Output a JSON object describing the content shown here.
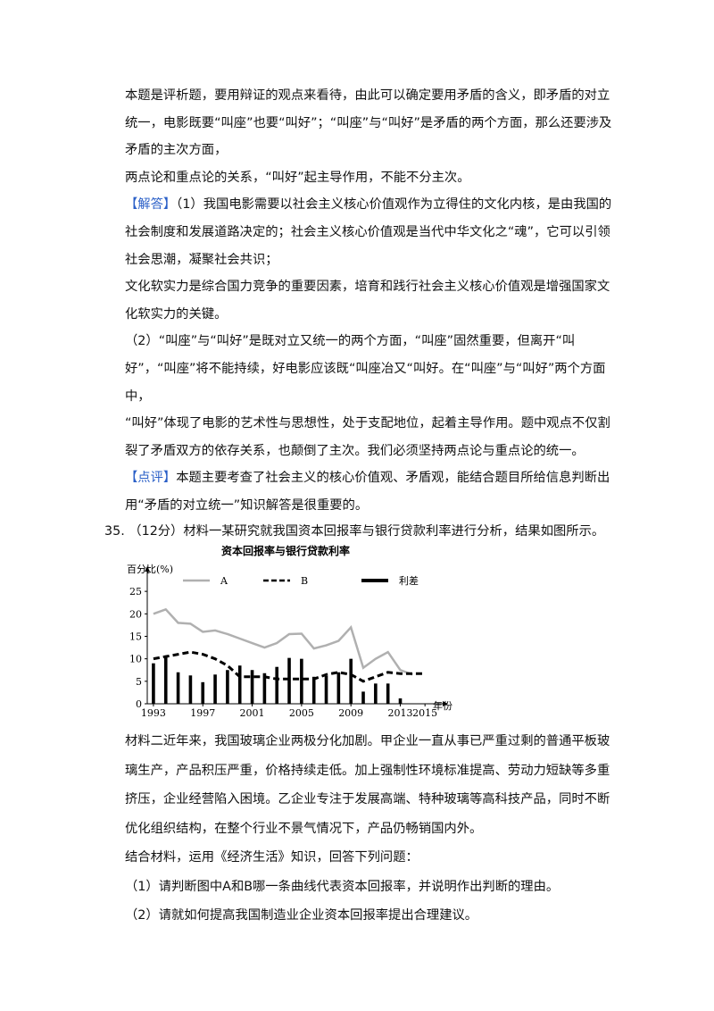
{
  "paragraphs": [
    {
      "text": "本题是评析题，要用辩证的观点来看待，由此可以确定要用矛盾的含义，即矛盾的对立统一，电影既要“叫座”也要“叫好”；“叫座”与“叫好”是矛盾的两个方面，那么还要涉及矛盾的主次方面，"
    },
    {
      "text": "两点论和重点论的关系，“叫好”起主导作用，不能不分主次。"
    },
    {
      "label": "【解答】",
      "text": "（1）我国电影需要以社会主义核心价值观作为立得住的文化内核，是由我国的社会制度和发展道路决定的；社会主义核心价值观是当代中华文化之“魂”，它可以引领社会思潮，凝聚社会共识；"
    },
    {
      "text": "文化软实力是综合国力竞争的重要因素，培育和践行社会主义核心价值观是增强国家文化软实力的关键。"
    },
    {
      "text": "（2）“叫座”与“叫好”是既对立又统一的两个方面，“叫座”固然重要，但离开“叫好”，“叫座”将不能持续，好电影应该既“叫座冶又“叫好。在“叫座”与“叫好”两个方面中，"
    },
    {
      "text": "“叫好”体现了电影的艺术性与思想性，处于支配地位，起着主导作用。题中观点不仅割裂了矛盾双方的依存关系，也颠倒了主次。我们必须坚持两点论与重点论的统一。"
    },
    {
      "label": "【点评】",
      "text": "本题主要考查了社会主义的核心价值观、矛盾观，能结合题目所给信息判断出用“矛盾的对立统一”知识解答是很重要的。"
    }
  ],
  "question": {
    "number": "35.",
    "text": "（12分）材料一某研究就我国资本回报率与银行贷款利率进行分析，结果如图所示。"
  },
  "chart_data": {
    "type": "line",
    "title": "资本回报率与银行贷款利率",
    "y_label": "百分比(%)",
    "x_label": "年份",
    "x": [
      1993,
      1994,
      1995,
      1996,
      1997,
      1998,
      1999,
      2000,
      2001,
      2002,
      2003,
      2004,
      2005,
      2006,
      2007,
      2008,
      2009,
      2010,
      2011,
      2012,
      2013,
      2014,
      2015
    ],
    "series": [
      {
        "name": "A",
        "color": "#b0b0b0",
        "style": "solid",
        "values": [
          20,
          21,
          18,
          17.8,
          16,
          16.3,
          15.5,
          14.5,
          13.5,
          12.5,
          13.5,
          15.5,
          15.6,
          12.3,
          13,
          14,
          17,
          8,
          10,
          11.5,
          7.5,
          6.5,
          null
        ]
      },
      {
        "name": "B",
        "color": "#000000",
        "style": "dashed",
        "values": [
          10,
          10.5,
          11,
          11.5,
          11,
          10,
          8.5,
          6,
          6,
          6,
          5.5,
          5.5,
          5.5,
          5.5,
          6.5,
          7,
          6.5,
          5,
          6,
          7,
          6.7,
          6.7,
          6.7
        ]
      },
      {
        "name": "利差",
        "color": "#000000",
        "style": "bar",
        "values": [
          9,
          10.5,
          7,
          6.3,
          4.8,
          6.5,
          7.5,
          8.5,
          7.5,
          6.8,
          8.2,
          10.2,
          10,
          6,
          6.2,
          7,
          10,
          2.7,
          4.5,
          4.5,
          1.2,
          null,
          null
        ]
      }
    ],
    "xlim": [
      1992.5,
      2016
    ],
    "ylim": [
      0,
      29
    ],
    "xticks": [
      1993,
      1997,
      2001,
      2005,
      2009,
      2013,
      2015
    ],
    "yticks": [
      0,
      5,
      10,
      15,
      20,
      25
    ]
  },
  "materials": [
    {
      "text": "材料二近年来，我国玻璃企业两极分化加剧。甲企业一直从事已严重过剩的普通平板玻璃生产，产品积压严重，价格持续走低。加上强制性环境标准提高、劳动力短缺等多重挤压，企业经营陷入困境。乙企业专注于发展高端、特种玻璃等高科技产品，同时不断优化组织结构，在整个行业不景气情况下，产品仍畅销国内外。"
    },
    {
      "text": "结合材料，运用《经济生活》知识，回答下列问题："
    },
    {
      "text": "（1）请判断图中A和B哪一条曲线代表资本回报率，并说明作出判断的理由。"
    },
    {
      "text": "（2）请就如何提高我国制造业企业资本回报率提出合理建议。"
    }
  ]
}
